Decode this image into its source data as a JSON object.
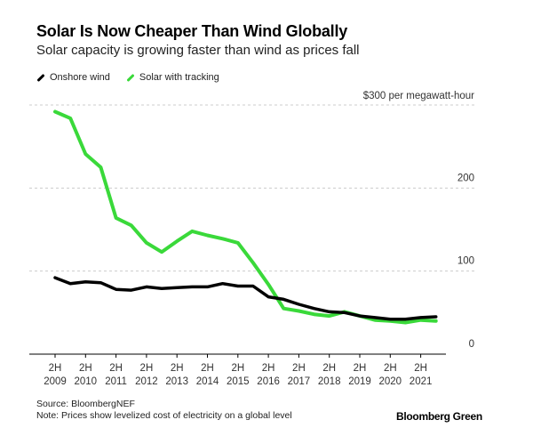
{
  "chart_data": {
    "type": "line",
    "title": "Solar Is Now Cheaper Than Wind Globally",
    "subtitle": "Solar capacity is growing faster than wind as prices fall",
    "ylabel": "$300 per megawatt-hour",
    "xlabel": "",
    "ylim": [
      0,
      300
    ],
    "yticks": [
      0,
      100,
      200
    ],
    "ytick_labels": [
      "0",
      "100",
      "200"
    ],
    "grid": true,
    "legend_position": "top-left",
    "x": [
      "2H 2009",
      "1H 2010",
      "2H 2010",
      "1H 2011",
      "2H 2011",
      "1H 2012",
      "2H 2012",
      "1H 2013",
      "2H 2013",
      "1H 2014",
      "2H 2014",
      "1H 2015",
      "2H 2015",
      "1H 2016",
      "2H 2016",
      "1H 2017",
      "2H 2017",
      "1H 2018",
      "2H 2018",
      "1H 2019",
      "2H 2019",
      "1H 2020",
      "2H 2020",
      "1H 2021",
      "2H 2021",
      "1H 2022"
    ],
    "xtick_labels": [
      [
        "2H",
        "2009"
      ],
      [
        "2H",
        "2010"
      ],
      [
        "2H",
        "2011"
      ],
      [
        "2H",
        "2012"
      ],
      [
        "2H",
        "2013"
      ],
      [
        "2H",
        "2014"
      ],
      [
        "2H",
        "2015"
      ],
      [
        "2H",
        "2016"
      ],
      [
        "2H",
        "2017"
      ],
      [
        "2H",
        "2018"
      ],
      [
        "2H",
        "2019"
      ],
      [
        "2H",
        "2020"
      ],
      [
        "2H",
        "2021"
      ]
    ],
    "series": [
      {
        "name": "Onshore wind",
        "color": "#000000",
        "values": [
          92,
          85,
          87,
          86,
          78,
          77,
          81,
          79,
          80,
          81,
          81,
          85,
          82,
          82,
          69,
          66,
          60,
          55,
          51,
          50,
          46,
          44,
          42,
          42,
          44,
          45
        ]
      },
      {
        "name": "Solar with tracking",
        "color": "#3ad93a",
        "values": [
          292,
          284,
          241,
          225,
          164,
          155,
          134,
          123,
          136,
          148,
          143,
          139,
          134,
          110,
          84,
          55,
          52,
          48,
          46,
          51,
          46,
          41,
          40,
          38,
          41,
          40
        ]
      }
    ]
  },
  "footer": {
    "source": "Source: BloombergNEF",
    "note": "Note: Prices show levelized cost of electricity on a global level",
    "brand": "Bloomberg Green"
  }
}
